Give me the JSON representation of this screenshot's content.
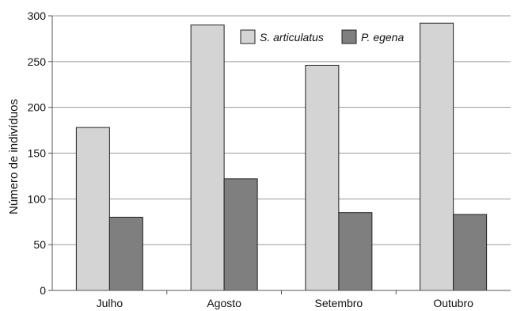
{
  "chart_data": {
    "type": "bar",
    "title": "",
    "xlabel": "",
    "ylabel": "Número de indivíduos",
    "categories": [
      "Julho",
      "Agosto",
      "Setembro",
      "Outubro"
    ],
    "series": [
      {
        "name": "S. articulatus",
        "values": [
          178,
          290,
          246,
          292
        ],
        "color": "#d4d4d4"
      },
      {
        "name": "P. egena",
        "values": [
          80,
          122,
          85,
          83
        ],
        "color": "#7f7f7f"
      }
    ],
    "ylim": [
      0,
      300
    ],
    "yticks": [
      0,
      50,
      100,
      150,
      200,
      250,
      300
    ],
    "grid": "horizontal",
    "legend_position": "top-right"
  }
}
